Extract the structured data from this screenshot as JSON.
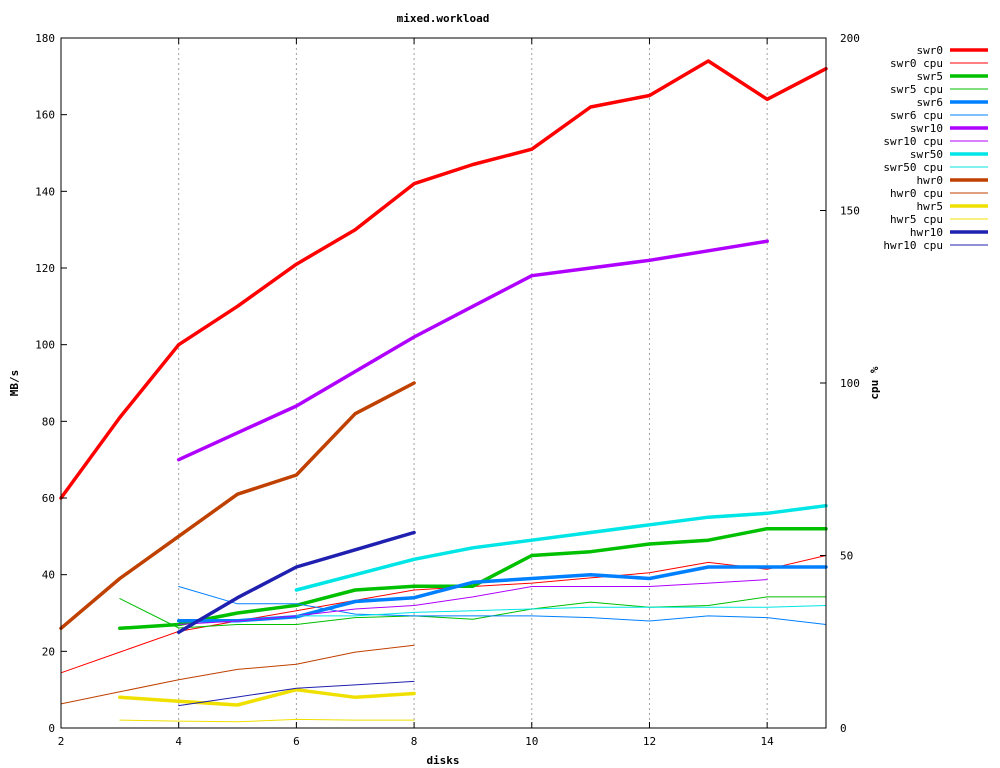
{
  "chart_data": {
    "type": "line",
    "title": "mixed.workload",
    "xlabel": "disks",
    "ylabel": "MB/s",
    "y2label": "cpu %",
    "xlim": [
      2,
      15
    ],
    "ylim": [
      0,
      180
    ],
    "y2lim": [
      0,
      200
    ],
    "xticks": [
      2,
      4,
      6,
      8,
      10,
      12,
      14
    ],
    "yticks": [
      0,
      20,
      40,
      60,
      80,
      100,
      120,
      140,
      160,
      180
    ],
    "y2ticks": [
      0,
      50,
      100,
      150,
      200
    ],
    "grid": "vertical-dotted",
    "legend_position": "top-right-outside",
    "series": [
      {
        "name": "swr0",
        "axis": "y",
        "color": "#ff0000",
        "style": "thick",
        "x": [
          2,
          3,
          4,
          5,
          6,
          7,
          8,
          9,
          10,
          11,
          12,
          13,
          14,
          15
        ],
        "y": [
          60,
          81,
          100,
          110,
          121,
          130,
          142,
          147,
          151,
          162,
          165,
          174,
          164,
          172
        ]
      },
      {
        "name": "swr0 cpu",
        "axis": "y2",
        "color": "#ff0000",
        "style": "thin",
        "x": [
          2,
          3,
          4,
          5,
          6,
          7,
          8,
          9,
          10,
          11,
          12,
          13,
          14,
          15
        ],
        "y": [
          16,
          22,
          28,
          31,
          34,
          37,
          40,
          41,
          42,
          43.5,
          45,
          48,
          46,
          50
        ]
      },
      {
        "name": "swr5",
        "axis": "y",
        "color": "#00c000",
        "style": "thick",
        "x": [
          3,
          4,
          5,
          6,
          7,
          8,
          9,
          10,
          11,
          12,
          13,
          14,
          15
        ],
        "y": [
          26,
          27,
          30,
          32,
          36,
          37,
          37,
          45,
          46,
          48,
          49,
          52,
          52
        ]
      },
      {
        "name": "swr5 cpu",
        "axis": "y2",
        "color": "#00c000",
        "style": "thin",
        "x": [
          3,
          4,
          5,
          6,
          7,
          8,
          9,
          10,
          11,
          12,
          13,
          14,
          15
        ],
        "y": [
          37.5,
          29,
          30,
          30,
          32,
          32.5,
          31.5,
          34.5,
          36.5,
          35,
          35.5,
          38,
          38
        ]
      },
      {
        "name": "swr6",
        "axis": "y",
        "color": "#0080ff",
        "style": "thick",
        "x": [
          4,
          5,
          6,
          7,
          8,
          9,
          10,
          11,
          12,
          13,
          14,
          15
        ],
        "y": [
          28,
          28,
          29,
          33,
          34,
          38,
          39,
          40,
          39,
          42,
          42,
          42
        ]
      },
      {
        "name": "swr6 cpu",
        "axis": "y2",
        "color": "#0080ff",
        "style": "thin",
        "x": [
          4,
          5,
          6,
          7,
          8,
          9,
          10,
          11,
          12,
          13,
          14,
          15
        ],
        "y": [
          41,
          36,
          36,
          33,
          32.5,
          32.5,
          32.5,
          32,
          31,
          32.5,
          32,
          30
        ]
      },
      {
        "name": "swr10",
        "axis": "y",
        "color": "#b000ff",
        "style": "thick",
        "x": [
          4,
          5,
          6,
          7,
          8,
          9,
          10,
          11,
          12,
          13,
          14
        ],
        "y": [
          70,
          77,
          84,
          93,
          102,
          110,
          118,
          120,
          122,
          124.5,
          127
        ]
      },
      {
        "name": "swr10 cpu",
        "axis": "y2",
        "color": "#b000ff",
        "style": "thin",
        "x": [
          4,
          5,
          6,
          7,
          8,
          9,
          10,
          11,
          12,
          13,
          14
        ],
        "y": [
          30,
          31,
          32.5,
          34.5,
          35.5,
          38,
          41,
          41,
          41,
          42,
          43
        ]
      },
      {
        "name": "swr50",
        "axis": "y",
        "color": "#00e5e5",
        "style": "thick",
        "x": [
          6,
          7,
          8,
          9,
          10,
          11,
          12,
          13,
          14,
          15
        ],
        "y": [
          36,
          40,
          44,
          47,
          49,
          51,
          53,
          55,
          56,
          58
        ]
      },
      {
        "name": "swr50 cpu",
        "axis": "y2",
        "color": "#00e5e5",
        "style": "thin",
        "x": [
          6,
          7,
          8,
          9,
          10,
          11,
          12,
          13,
          14,
          15
        ],
        "y": [
          32.5,
          32.5,
          33.5,
          34,
          34.5,
          35,
          35,
          35,
          35,
          35.5
        ]
      },
      {
        "name": "hwr0",
        "axis": "y",
        "color": "#c04000",
        "style": "thick",
        "x": [
          2,
          3,
          4,
          5,
          6,
          7,
          8
        ],
        "y": [
          26,
          39,
          50,
          61,
          66,
          82,
          90
        ]
      },
      {
        "name": "hwr0 cpu",
        "axis": "y2",
        "color": "#c04000",
        "style": "thin",
        "x": [
          2,
          3,
          4,
          5,
          6,
          7,
          8
        ],
        "y": [
          7,
          10.5,
          14,
          17,
          18.5,
          22,
          24
        ]
      },
      {
        "name": "hwr5",
        "axis": "y",
        "color": "#f0e000",
        "style": "thick",
        "x": [
          3,
          4,
          5,
          6,
          7,
          8
        ],
        "y": [
          8,
          7,
          6,
          10,
          8,
          9
        ]
      },
      {
        "name": "hwr5 cpu",
        "axis": "y2",
        "color": "#f0e000",
        "style": "thin",
        "x": [
          3,
          4,
          5,
          6,
          7,
          8
        ],
        "y": [
          2.3,
          2,
          1.8,
          2.5,
          2.3,
          2.3
        ]
      },
      {
        "name": "hwr10",
        "axis": "y",
        "color": "#2020b0",
        "style": "thick",
        "x": [
          4,
          5,
          6,
          7,
          8
        ],
        "y": [
          25,
          34,
          42,
          46.5,
          51
        ]
      },
      {
        "name": "hwr10 cpu",
        "axis": "y2",
        "color": "#2020b0",
        "style": "thin",
        "x": [
          4,
          5,
          6,
          7,
          8
        ],
        "y": [
          6.5,
          9,
          11.5,
          12.5,
          13.5
        ]
      }
    ]
  }
}
